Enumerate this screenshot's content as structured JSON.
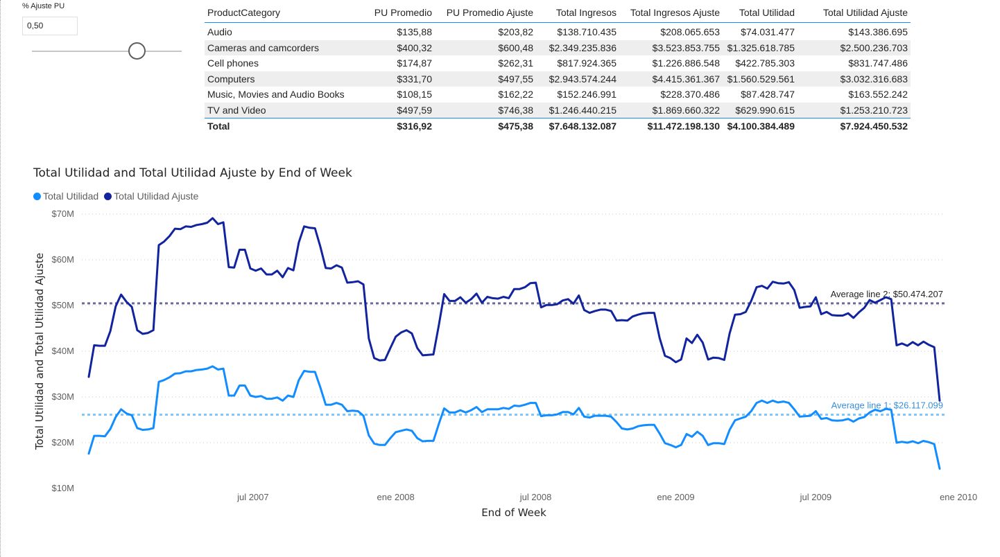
{
  "slicer": {
    "title": "% Ajuste PU",
    "value": "0,50",
    "slider_fraction": 0.7
  },
  "table": {
    "headers": [
      "ProductCategory",
      "PU Promedio",
      "PU Promedio Ajuste",
      "Total Ingresos",
      "Total Ingresos Ajuste",
      "Total Utilidad",
      "Total Utilidad Ajuste"
    ],
    "rows": [
      [
        "Audio",
        "$135,88",
        "$203,82",
        "$138.710.435",
        "$208.065.653",
        "$74.031.477",
        "$143.386.695"
      ],
      [
        "Cameras and camcorders",
        "$400,32",
        "$600,48",
        "$2.349.235.836",
        "$3.523.853.755",
        "$1.325.618.785",
        "$2.500.236.703"
      ],
      [
        "Cell phones",
        "$174,87",
        "$262,31",
        "$817.924.365",
        "$1.226.886.548",
        "$422.785.303",
        "$831.747.486"
      ],
      [
        "Computers",
        "$331,70",
        "$497,55",
        "$2.943.574.244",
        "$4.415.361.367",
        "$1.560.529.561",
        "$3.032.316.683"
      ],
      [
        "Music, Movies and Audio Books",
        "$108,15",
        "$162,22",
        "$152.246.991",
        "$228.370.486",
        "$87.428.747",
        "$163.552.242"
      ],
      [
        "TV and Video",
        "$497,59",
        "$746,38",
        "$1.246.440.215",
        "$1.869.660.322",
        "$629.990.615",
        "$1.253.210.723"
      ]
    ],
    "total": [
      "Total",
      "$316,92",
      "$475,38",
      "$7.648.132.087",
      "$11.472.198.130",
      "$4.100.384.489",
      "$7.924.450.532"
    ]
  },
  "chart_data": {
    "type": "line",
    "title": "Total Utilidad and Total Utilidad Ajuste by End of Week",
    "xlabel": "End of Week",
    "ylabel": "Total Utilidad and Total Utilidad Ajuste",
    "ylim": [
      10,
      70
    ],
    "y_unit": "$M",
    "y_ticks": [
      "$10M",
      "$20M",
      "$30M",
      "$40M",
      "$50M",
      "$60M",
      "$70M"
    ],
    "x_ticks": [
      {
        "label": "jul 2007",
        "index": 30.5
      },
      {
        "label": "ene 2008",
        "index": 57
      },
      {
        "label": "jul 2008",
        "index": 83
      },
      {
        "label": "ene 2009",
        "index": 109
      },
      {
        "label": "jul 2009",
        "index": 135
      },
      {
        "label": "ene 2010",
        "index": 161.5
      }
    ],
    "x_count": 159,
    "legend": [
      "Total Utilidad",
      "Total Utilidad Ajuste"
    ],
    "legend_position": "top-left",
    "series": [
      {
        "name": "Total Utilidad",
        "color": "#118dff",
        "values": [
          17.6,
          21.5,
          21.5,
          21.4,
          23.0,
          25.6,
          27.3,
          26.4,
          26.0,
          23.2,
          22.8,
          22.9,
          23.2,
          33.3,
          33.7,
          34.3,
          35.1,
          35.2,
          35.6,
          35.6,
          35.9,
          36.0,
          36.2,
          36.7,
          36.0,
          36.2,
          30.3,
          30.3,
          32.5,
          32.5,
          30.3,
          30.0,
          30.2,
          29.6,
          29.6,
          29.9,
          29.2,
          30.3,
          30.0,
          33.7,
          35.7,
          35.5,
          35.5,
          32.1,
          28.3,
          28.3,
          28.7,
          28.3,
          26.9,
          27.0,
          26.9,
          25.9,
          21.6,
          19.8,
          19.5,
          19.5,
          21.0,
          22.3,
          22.6,
          22.9,
          22.6,
          21.0,
          20.3,
          20.4,
          20.4,
          24.1,
          27.5,
          26.6,
          26.6,
          27.1,
          26.6,
          27.1,
          27.8,
          26.7,
          27.3,
          27.3,
          27.3,
          27.6,
          27.4,
          28.1,
          28.0,
          28.3,
          28.7,
          28.7,
          25.8,
          26.0,
          26.0,
          26.2,
          26.7,
          26.7,
          26.2,
          27.6,
          25.7,
          25.5,
          25.9,
          25.9,
          25.9,
          25.7,
          24.5,
          23.1,
          22.9,
          23.1,
          23.6,
          23.8,
          23.9,
          23.9,
          22.0,
          19.9,
          19.5,
          19.0,
          19.5,
          21.9,
          21.3,
          22.4,
          21.5,
          19.5,
          19.9,
          19.9,
          19.7,
          22.8,
          24.9,
          25.3,
          25.7,
          26.9,
          28.7,
          29.2,
          28.7,
          29.2,
          28.8,
          29.0,
          28.7,
          27.3,
          25.7,
          25.8,
          25.9,
          26.9,
          25.2,
          25.4,
          24.9,
          24.8,
          24.9,
          25.2,
          24.6,
          25.3,
          25.6,
          26.6,
          27.2,
          26.9,
          27.4,
          27.2,
          20.0,
          20.2,
          20.0,
          20.3,
          19.9,
          20.4,
          20.1,
          19.7,
          14.3
        ]
      },
      {
        "name": "Total Utilidad Ajuste",
        "color": "#12239e",
        "values": [
          34.4,
          41.3,
          41.2,
          41.2,
          44.4,
          49.8,
          52.4,
          50.8,
          49.7,
          44.6,
          43.8,
          44.0,
          44.6,
          63.2,
          64.0,
          65.2,
          66.8,
          66.7,
          67.3,
          67.2,
          67.6,
          67.8,
          68.1,
          69.1,
          67.8,
          68.2,
          58.4,
          58.3,
          62.2,
          62.2,
          58.1,
          57.6,
          58.1,
          56.8,
          56.8,
          57.6,
          56.2,
          58.2,
          57.7,
          63.8,
          67.3,
          67.0,
          66.9,
          62.9,
          58.2,
          58.1,
          58.8,
          58.3,
          55.0,
          55.1,
          55.3,
          54.6,
          42.8,
          38.5,
          38.0,
          38.1,
          40.7,
          43.2,
          44.1,
          44.6,
          43.9,
          40.7,
          39.1,
          39.2,
          39.3,
          45.7,
          52.5,
          51.0,
          51.0,
          51.8,
          50.6,
          51.4,
          52.6,
          50.6,
          51.9,
          51.6,
          51.5,
          51.9,
          51.6,
          53.6,
          53.6,
          54.0,
          54.9,
          55.0,
          49.6,
          50.1,
          50.1,
          50.3,
          51.1,
          51.4,
          50.4,
          52.2,
          49.0,
          48.4,
          48.8,
          49.1,
          49.1,
          48.8,
          46.7,
          46.8,
          46.7,
          47.6,
          48.0,
          48.3,
          48.4,
          48.4,
          42.9,
          39.0,
          38.5,
          37.6,
          38.2,
          42.8,
          41.8,
          43.6,
          41.9,
          38.2,
          38.6,
          38.5,
          38.1,
          43.9,
          48.0,
          48.1,
          48.6,
          51.0,
          54.0,
          54.3,
          53.7,
          55.2,
          54.9,
          54.8,
          55.1,
          53.4,
          49.5,
          49.7,
          49.8,
          51.8,
          48.1,
          48.6,
          47.9,
          47.8,
          47.8,
          48.3,
          47.3,
          48.5,
          49.5,
          51.2,
          50.6,
          51.2,
          51.8,
          51.4,
          41.3,
          41.7,
          41.2,
          42.0,
          41.3,
          42.1,
          41.4,
          40.9,
          29.2
        ]
      }
    ],
    "average_lines": [
      {
        "label": "Average line 2: $50.474.207",
        "value": 50.474207,
        "color": "#6b6b9a",
        "label_color": "#252423"
      },
      {
        "label": "Average line 1: $26.117.099",
        "value": 26.117099,
        "color": "#80c4f5",
        "label_color": "#3a8fd8"
      }
    ]
  }
}
